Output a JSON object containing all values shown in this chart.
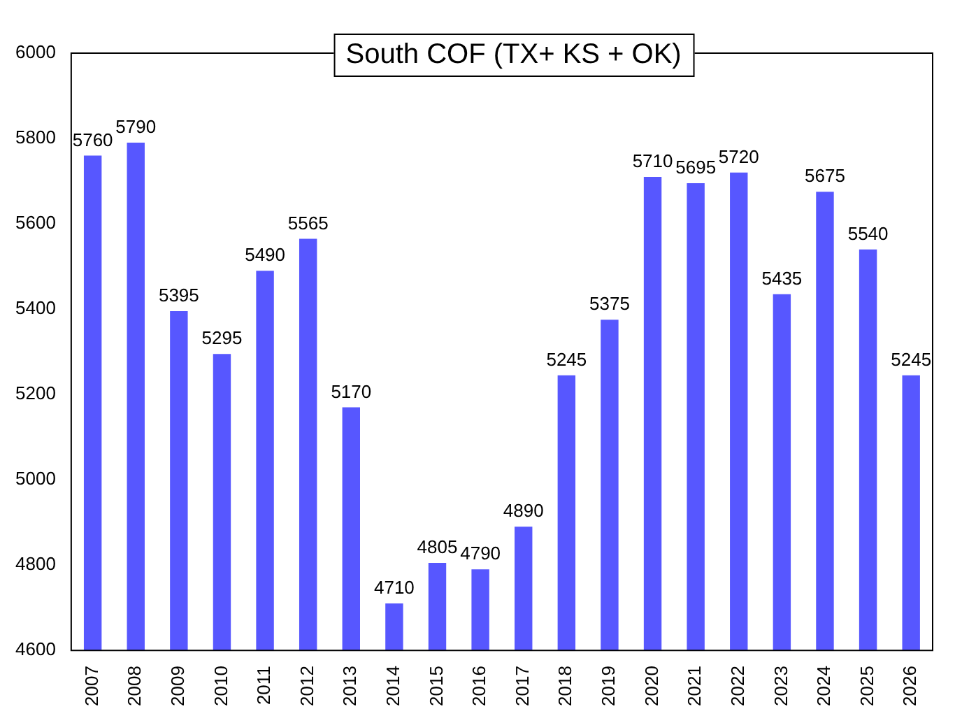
{
  "chart_data": {
    "type": "bar",
    "title": "South COF (TX+ KS + OK)",
    "categories": [
      "2007",
      "2008",
      "2009",
      "2010",
      "2011",
      "2012",
      "2013",
      "2014",
      "2015",
      "2016",
      "2017",
      "2018",
      "2019",
      "2020",
      "2021",
      "2022",
      "2023",
      "2024",
      "2025",
      "2026"
    ],
    "values": [
      5760,
      5790,
      5395,
      5295,
      5490,
      5565,
      5170,
      4710,
      4805,
      4790,
      4890,
      5245,
      5375,
      5710,
      5695,
      5720,
      5435,
      5675,
      5540,
      5245
    ],
    "color": "#5757ff",
    "ylim": [
      4600,
      6000
    ],
    "yticks": [
      4600,
      4800,
      5000,
      5200,
      5400,
      5600,
      5800,
      6000
    ],
    "grid": false,
    "legend": false,
    "data_labels": true
  }
}
